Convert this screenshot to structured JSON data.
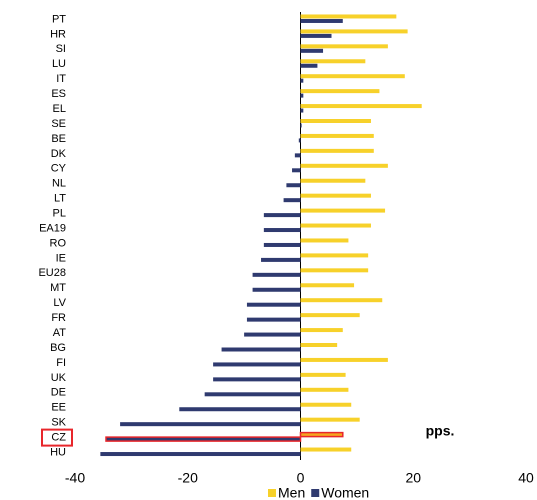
{
  "chart_data": {
    "type": "hbar",
    "categories": [
      "PT",
      "HR",
      "SI",
      "LU",
      "IT",
      "ES",
      "EL",
      "SE",
      "BE",
      "DK",
      "CY",
      "NL",
      "LT",
      "PL",
      "EA19",
      "RO",
      "IE",
      "EU28",
      "MT",
      "LV",
      "FR",
      "AT",
      "BG",
      "FI",
      "UK",
      "DE",
      "EE",
      "SK",
      "CZ",
      "HU"
    ],
    "series": [
      {
        "name": "Men",
        "color": "#f7d12a",
        "values": [
          17,
          19,
          15.5,
          11.5,
          18.5,
          14,
          21.5,
          12.5,
          13,
          13,
          15.5,
          11.5,
          12.5,
          15,
          12.5,
          8.5,
          12,
          12,
          9.5,
          14.5,
          10.5,
          7.5,
          6.5,
          15.5,
          8,
          8.5,
          9,
          10.5,
          7.5,
          9
        ]
      },
      {
        "name": "Women",
        "color": "#2f3a6f",
        "values": [
          7.5,
          5.5,
          4,
          3,
          0.5,
          0.5,
          0.5,
          0.2,
          -0.3,
          -1,
          -1.5,
          -2.5,
          -3,
          -6.5,
          -6.5,
          -6.5,
          -7,
          -8.5,
          -8.5,
          -9.5,
          -9.5,
          -10,
          -14,
          -15.5,
          -15.5,
          -17,
          -21.5,
          -32,
          -34.5,
          -35.5
        ]
      }
    ],
    "xlim": [
      -40,
      40
    ],
    "xticks": [
      -40,
      -20,
      0,
      20,
      40
    ],
    "annotation": "pps.",
    "highlight": "CZ",
    "highlight_color": "#e8262b"
  }
}
